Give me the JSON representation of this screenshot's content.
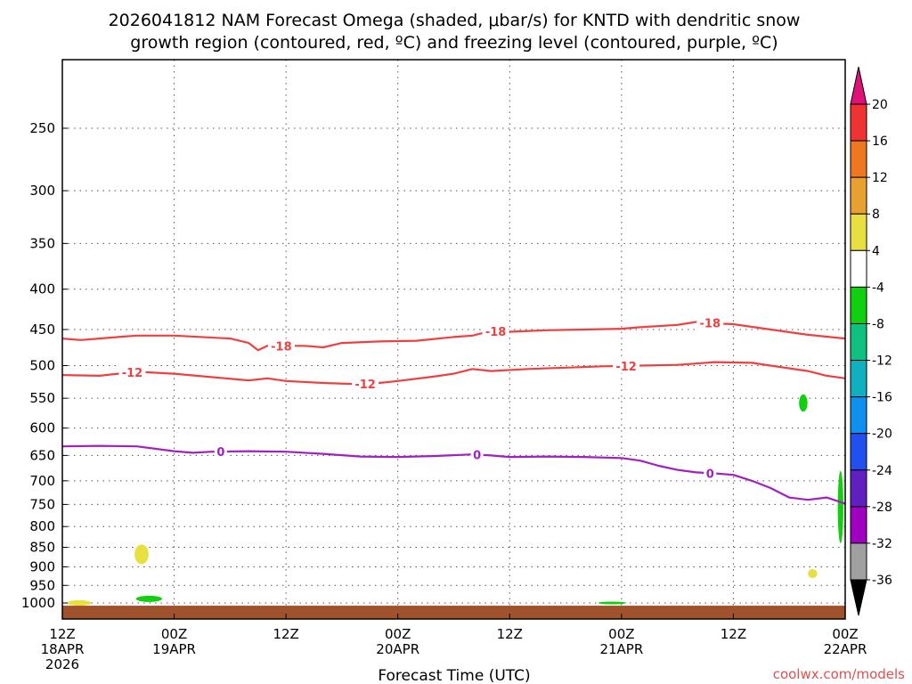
{
  "chart_data": {
    "type": "time-height cross section",
    "title_line1": "2026041812 NAM Forecast Omega (shaded, μbar/s) for KNTD with dendritic snow",
    "title_line2": "growth region (contoured, red, ºC) and freezing level (contoured, purple, ºC)",
    "xlabel": "Forecast Time (UTC)",
    "ylabel": "",
    "credit": "coolwx.com/models",
    "x_unit": "hours since 2026-04-18 12Z",
    "xlim": [
      0,
      84
    ],
    "ylim": [
      1050,
      200
    ],
    "y_scale": "log-pressure",
    "y_ticks": [
      250,
      300,
      350,
      400,
      450,
      500,
      550,
      600,
      650,
      700,
      750,
      800,
      850,
      900,
      950,
      1000
    ],
    "x_ticks": [
      {
        "hour": 0,
        "lines": [
          "12Z",
          "18APR",
          "2026"
        ]
      },
      {
        "hour": 12,
        "lines": [
          "00Z",
          "19APR"
        ]
      },
      {
        "hour": 24,
        "lines": [
          "12Z"
        ]
      },
      {
        "hour": 36,
        "lines": [
          "00Z",
          "20APR"
        ]
      },
      {
        "hour": 48,
        "lines": [
          "12Z"
        ]
      },
      {
        "hour": 60,
        "lines": [
          "00Z",
          "21APR"
        ]
      },
      {
        "hour": 72,
        "lines": [
          "12Z"
        ]
      },
      {
        "hour": 84,
        "lines": [
          "00Z",
          "22APR"
        ]
      }
    ],
    "series": [
      {
        "name": "-18",
        "color": "#ee4040",
        "label": "-18",
        "x": [
          0,
          2,
          6,
          8,
          12,
          18,
          20,
          21,
          22,
          26,
          28,
          30,
          34,
          38,
          42,
          44,
          46,
          48,
          52,
          56,
          60,
          62,
          66,
          68,
          70,
          72,
          76,
          80,
          84
        ],
        "y": [
          462,
          464,
          460,
          458,
          458,
          462,
          468,
          478,
          472,
          472,
          474,
          468,
          466,
          465,
          460,
          458,
          452,
          453,
          451,
          450,
          449,
          447,
          444,
          440,
          442,
          443,
          450,
          457,
          462
        ],
        "labels_at": [
          23.5,
          46.5,
          69.5
        ]
      },
      {
        "name": "-12",
        "color": "#ee4040",
        "label": "-12",
        "x": [
          0,
          4,
          6,
          8,
          12,
          16,
          20,
          22,
          24,
          28,
          32,
          34,
          36,
          40,
          42,
          44,
          46,
          50,
          54,
          58,
          62,
          66,
          68,
          70,
          74,
          76,
          80,
          82,
          84
        ],
        "y": [
          514,
          515,
          512,
          509,
          512,
          517,
          522,
          519,
          523,
          526,
          528,
          526,
          523,
          516,
          512,
          505,
          508,
          505,
          503,
          501,
          500,
          499,
          497,
          495,
          496,
          500,
          508,
          515,
          519
        ],
        "labels_at": [
          7.5,
          32.5,
          60.5
        ]
      },
      {
        "name": "0",
        "color": "#a020c0",
        "label": "0",
        "x": [
          0,
          4,
          8,
          12,
          14,
          16,
          20,
          24,
          28,
          32,
          36,
          40,
          44,
          46,
          48,
          52,
          56,
          60,
          62,
          64,
          66,
          68,
          70,
          72,
          74,
          76,
          78,
          80,
          82,
          84
        ],
        "y": [
          633,
          632,
          633,
          642,
          645,
          643,
          642,
          643,
          647,
          652,
          653,
          651,
          648,
          650,
          653,
          652,
          653,
          655,
          660,
          670,
          678,
          683,
          685,
          688,
          700,
          715,
          735,
          740,
          735,
          748
        ],
        "labels_at": [
          17,
          44.5,
          69.5
        ]
      }
    ],
    "shaded_regions": [
      {
        "range": "4 to 8",
        "color": "#e8e040",
        "center_hour": 8.5,
        "center_p": 868,
        "hours": 1.5,
        "p_half": 25
      },
      {
        "range": "4 to 8",
        "color": "#e8e040",
        "center_hour": 1.8,
        "center_p": 1000,
        "hours": 2.6,
        "p_half": 8
      },
      {
        "range": "4 to 8",
        "color": "#e8e040",
        "center_hour": 80.5,
        "center_p": 918,
        "hours": 1.0,
        "p_half": 12
      },
      {
        "range": "-4 to -8",
        "color": "#10d010",
        "center_hour": 9.3,
        "center_p": 988,
        "hours": 2.8,
        "p_half": 9
      },
      {
        "range": "-4 to -8",
        "color": "#10d010",
        "center_hour": 79.5,
        "center_p": 558,
        "hours": 0.9,
        "p_half": 14
      },
      {
        "range": "-4 to -8",
        "color": "#10d010",
        "center_hour": 83.5,
        "center_p": 760,
        "hours": 0.6,
        "p_half": 80
      },
      {
        "range": "-4 to -8",
        "color": "#10d010",
        "center_hour": 59.0,
        "center_p": 1000,
        "hours": 3.0,
        "p_half": 4
      }
    ],
    "terrain_top_hpa": 1008,
    "terrain_color": "#a0522d",
    "colorbar": {
      "levels": [
        20,
        16,
        12,
        8,
        4,
        -4,
        -8,
        -12,
        -16,
        -20,
        -24,
        -28,
        -32,
        -36
      ],
      "colors": [
        "#ff3366",
        "#ee3333",
        "#ee7722",
        "#e8a030",
        "#e8e040",
        "#ffffff",
        "#10d010",
        "#10c080",
        "#10b0c0",
        "#1090ee",
        "#2050ee",
        "#6020c0",
        "#a000c0",
        "#a0a0a0"
      ],
      "top_triangle_color": "#dd1177",
      "bottom_triangle_color": "#000000"
    }
  }
}
